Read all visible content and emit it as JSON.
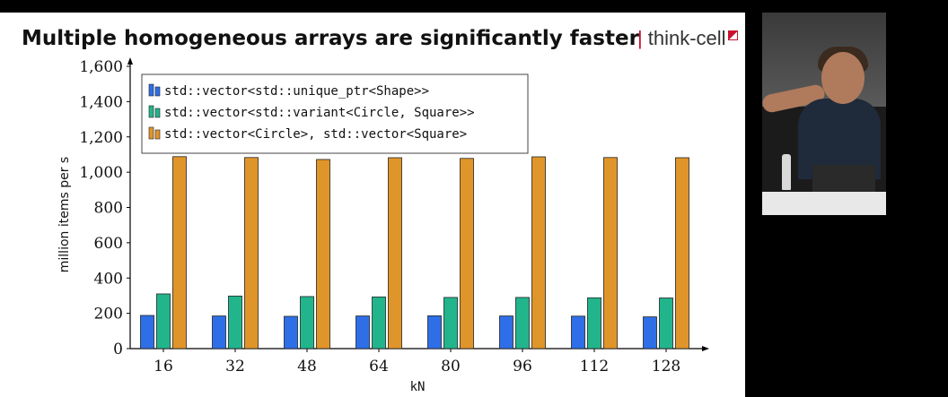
{
  "slide": {
    "title": "Multiple homogeneous arrays are significantly faster",
    "brand": "think-cell"
  },
  "colors": {
    "series1": "#2e6fe8",
    "series2": "#22b58c",
    "series3": "#e0952a"
  },
  "chart_data": {
    "type": "bar",
    "categories": [
      "16",
      "32",
      "48",
      "64",
      "80",
      "96",
      "112",
      "128"
    ],
    "xlabel": "kN",
    "ylabel": "million items per s",
    "ylim": [
      0,
      1600
    ],
    "yticks": [
      0,
      200,
      400,
      600,
      800,
      1000,
      1200,
      1400,
      1600
    ],
    "ytick_labels": [
      "0",
      "200",
      "400",
      "600",
      "800",
      "1,000",
      "1,200",
      "1,400",
      "1,600"
    ],
    "grid": false,
    "legend_position": "top-left",
    "series": [
      {
        "name": "std::vector<std::unique_ptr<Shape>>",
        "values": [
          188,
          185,
          183,
          185,
          186,
          185,
          184,
          180
        ]
      },
      {
        "name": "std::vector<std::variant<Circle, Square>>",
        "values": [
          310,
          298,
          295,
          293,
          290,
          290,
          288,
          287
        ]
      },
      {
        "name": "std::vector<Circle>, std::vector<Square>",
        "values": [
          1088,
          1083,
          1072,
          1082,
          1078,
          1087,
          1083,
          1082
        ]
      }
    ]
  }
}
